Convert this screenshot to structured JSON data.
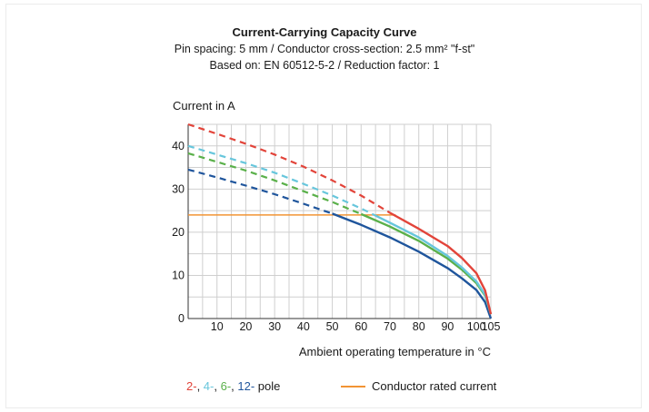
{
  "chart_data": {
    "type": "line",
    "title": "Current-Carrying Capacity Curve",
    "subtitle_lines": [
      "Pin spacing: 5 mm / Conductor cross-section: 2.5 mm² \"f-st\"",
      "Based on: EN 60512-5-2 / Reduction factor: 1"
    ],
    "ylabel": "Current in A",
    "xlabel": "Ambient operating temperature in °C",
    "xlim": [
      0,
      105
    ],
    "ylim": [
      0,
      45
    ],
    "x_ticks": [
      10,
      20,
      30,
      40,
      50,
      60,
      70,
      80,
      90,
      100,
      105
    ],
    "y_ticks": [
      0,
      10,
      20,
      30,
      40
    ],
    "grid": true,
    "series": [
      {
        "name": "2-",
        "color": "#e2443a",
        "dashed_until_x": 70,
        "points": [
          [
            0,
            45
          ],
          [
            10,
            42.8
          ],
          [
            20,
            40.5
          ],
          [
            30,
            38
          ],
          [
            40,
            35.2
          ],
          [
            50,
            32
          ],
          [
            60,
            28.5
          ],
          [
            70,
            24.5
          ],
          [
            80,
            20.8
          ],
          [
            90,
            16.8
          ],
          [
            95,
            14
          ],
          [
            100,
            10.5
          ],
          [
            103,
            6.5
          ],
          [
            105,
            1
          ]
        ]
      },
      {
        "name": "4-",
        "color": "#67c6dc",
        "dashed_until_x": 65,
        "points": [
          [
            0,
            40
          ],
          [
            10,
            38
          ],
          [
            20,
            36
          ],
          [
            30,
            33.8
          ],
          [
            40,
            31.2
          ],
          [
            50,
            28.5
          ],
          [
            60,
            25.5
          ],
          [
            70,
            22.2
          ],
          [
            80,
            18.8
          ],
          [
            90,
            14.5
          ],
          [
            95,
            11.8
          ],
          [
            100,
            8.6
          ],
          [
            103,
            5.5
          ],
          [
            105,
            1
          ]
        ]
      },
      {
        "name": "6-",
        "color": "#5ab04a",
        "dashed_until_x": 60,
        "points": [
          [
            0,
            38.3
          ],
          [
            10,
            36.3
          ],
          [
            20,
            34.3
          ],
          [
            30,
            32
          ],
          [
            40,
            29.5
          ],
          [
            50,
            27
          ],
          [
            60,
            24.2
          ],
          [
            70,
            21.3
          ],
          [
            80,
            18
          ],
          [
            90,
            13.9
          ],
          [
            95,
            11.3
          ],
          [
            100,
            8.2
          ],
          [
            103,
            5.3
          ],
          [
            105,
            1
          ]
        ]
      },
      {
        "name": "12-",
        "color": "#1f559c",
        "dashed_until_x": 50,
        "points": [
          [
            0,
            34.5
          ],
          [
            10,
            32.7
          ],
          [
            20,
            30.8
          ],
          [
            30,
            28.8
          ],
          [
            40,
            26.6
          ],
          [
            50,
            24.3
          ],
          [
            60,
            21.7
          ],
          [
            70,
            18.8
          ],
          [
            80,
            15.5
          ],
          [
            90,
            11.7
          ],
          [
            95,
            9.3
          ],
          [
            100,
            6.6
          ],
          [
            103,
            3.8
          ],
          [
            105,
            0
          ]
        ]
      }
    ],
    "rated_current": {
      "label": "Conductor rated current",
      "value": 24,
      "x_range": [
        0,
        72
      ],
      "color": "#f29434"
    },
    "legend": {
      "pole_suffix": " pole",
      "pole_items": [
        {
          "text": "2-",
          "color": "#e2443a"
        },
        {
          "text": ", ",
          "color": "#1a1a1a"
        },
        {
          "text": "4-",
          "color": "#67c6dc"
        },
        {
          "text": ", ",
          "color": "#1a1a1a"
        },
        {
          "text": "6-",
          "color": "#5ab04a"
        },
        {
          "text": ", ",
          "color": "#1a1a1a"
        },
        {
          "text": "12-",
          "color": "#1f559c"
        }
      ],
      "placement": "bottom"
    }
  }
}
